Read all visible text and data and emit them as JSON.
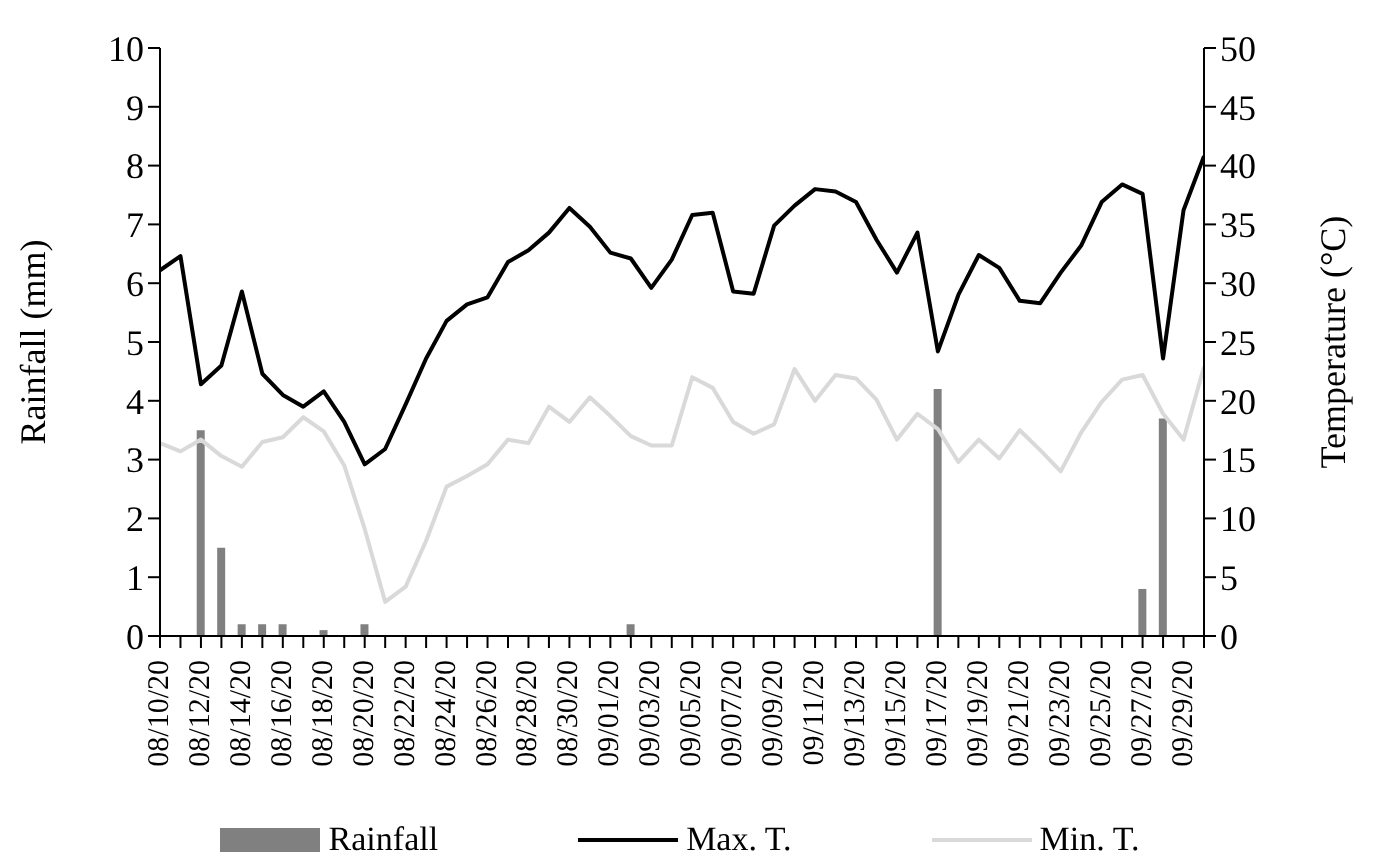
{
  "chart_data": {
    "type": "bar",
    "ylabel": "Rainfall (mm)",
    "y2label": "Temperature (°C)",
    "categories": [
      "08/10/20",
      null,
      "08/12/20",
      null,
      "08/14/20",
      null,
      "08/16/20",
      null,
      "08/18/20",
      null,
      "08/20/20",
      null,
      "08/22/20",
      null,
      "08/24/20",
      null,
      "08/26/20",
      null,
      "08/28/20",
      null,
      "08/30/20",
      null,
      "09/01/20",
      null,
      "09/03/20",
      null,
      "09/05/20",
      null,
      "09/07/20",
      null,
      "09/09/20",
      null,
      "09/11/20",
      null,
      "09/13/20",
      null,
      "09/15/20",
      null,
      "09/17/20",
      null,
      "09/19/20",
      null,
      "09/21/20",
      null,
      "09/23/20",
      null,
      "09/25/20",
      null,
      "09/27/20",
      null,
      "09/29/20",
      null
    ],
    "series": [
      {
        "name": "Rainfall",
        "color": "#808080",
        "values": [
          0,
          0,
          3.5,
          1.5,
          0.2,
          0.2,
          0.2,
          0,
          0.1,
          0,
          0.2,
          0,
          0,
          0,
          0,
          0,
          0,
          0,
          0,
          0,
          0,
          0,
          0,
          0.2,
          0,
          0,
          0,
          0,
          0,
          0,
          0,
          0,
          0,
          0,
          0,
          0,
          0,
          0,
          4.2,
          0,
          0,
          0,
          0,
          0,
          0,
          0,
          0,
          0,
          0.8,
          3.7,
          0,
          0
        ]
      },
      {
        "name": "Max. T.",
        "type": "line",
        "axis": "y2",
        "color": "#000000",
        "values": [
          31.1,
          32.3,
          21.4,
          23.0,
          29.3,
          22.3,
          20.5,
          19.5,
          20.8,
          18.2,
          14.6,
          15.9,
          19.7,
          23.6,
          26.8,
          28.2,
          28.8,
          31.8,
          32.8,
          34.3,
          36.4,
          34.8,
          32.6,
          32.1,
          29.6,
          32.0,
          35.8,
          36.0,
          29.3,
          29.1,
          34.9,
          36.6,
          38.0,
          37.8,
          36.9,
          33.7,
          30.9,
          34.3,
          24.2,
          29.0,
          32.4,
          31.3,
          28.5,
          28.3,
          30.9,
          33.2,
          36.9,
          38.4,
          37.6,
          23.6,
          36.2,
          40.8
        ]
      },
      {
        "name": "Min. T.",
        "type": "line",
        "axis": "y2",
        "color": "#d9d9d9",
        "values": [
          16.4,
          15.7,
          16.7,
          15.3,
          14.4,
          16.5,
          16.9,
          18.6,
          17.4,
          14.5,
          9.1,
          2.9,
          4.2,
          8.1,
          12.7,
          13.6,
          14.6,
          16.7,
          16.4,
          19.5,
          18.2,
          20.3,
          18.7,
          17.0,
          16.2,
          16.2,
          22.0,
          21.1,
          18.2,
          17.2,
          18.0,
          22.7,
          20.0,
          22.2,
          21.9,
          20.1,
          16.7,
          18.9,
          17.6,
          14.8,
          16.7,
          15.1,
          17.5,
          15.8,
          14.0,
          17.3,
          19.9,
          21.8,
          22.2,
          18.9,
          16.7,
          22.9
        ]
      }
    ],
    "ylim": [
      0,
      10
    ],
    "yticks": [
      0,
      1,
      2,
      3,
      4,
      5,
      6,
      7,
      8,
      9,
      10
    ],
    "y2lim": [
      0,
      50
    ],
    "y2ticks": [
      0,
      5,
      10,
      15,
      20,
      25,
      30,
      35,
      40,
      45,
      50
    ],
    "grid": false,
    "legend": "bottom",
    "marker": "none",
    "line_style": "solid"
  }
}
